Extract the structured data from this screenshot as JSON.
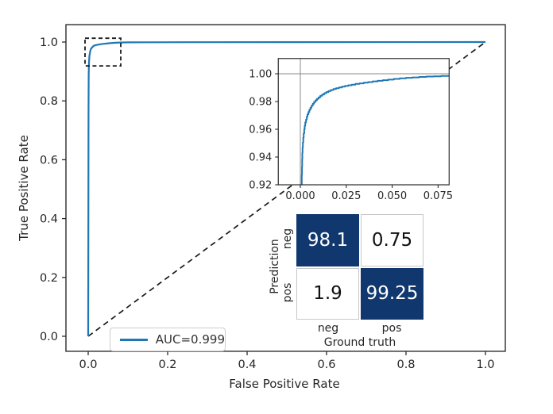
{
  "colors": {
    "curve_blue": "#1f77b4",
    "matrix_dark_blue": "#11386e",
    "dash_black": "#1a1a1a",
    "axes_text": "#262626",
    "spine": "#2b2b2b",
    "reference_gray": "#8a8a8a",
    "legend_border": "#cccccc"
  },
  "chart_data": [
    {
      "type": "line",
      "title": "",
      "xlabel": "False Positive Rate",
      "ylabel": "True Positive Rate",
      "xlim": [
        -0.056,
        1.05
      ],
      "ylim": [
        -0.051,
        1.059
      ],
      "x_ticks": [
        0.0,
        0.2,
        0.4,
        0.6,
        0.8,
        1.0
      ],
      "x_tick_labels": [
        "0.0",
        "0.2",
        "0.4",
        "0.6",
        "0.8",
        "1.0"
      ],
      "y_ticks": [
        0.0,
        0.2,
        0.4,
        0.6,
        0.8,
        1.0
      ],
      "y_tick_labels": [
        "0.0",
        "0.2",
        "0.4",
        "0.6",
        "0.8",
        "1.0"
      ],
      "grid": false,
      "legend": {
        "position": "lower-left",
        "entries": [
          "AUC=0.999"
        ]
      },
      "zoom_indicator_box": {
        "x": [
          -0.008,
          0.082
        ],
        "y": [
          0.919,
          1.013
        ]
      },
      "series": [
        {
          "name": "ROC curve",
          "style": "solid",
          "color": "#1f77b4",
          "points": [
            [
              0.0,
              0.0
            ],
            [
              0.0008,
              0.75
            ],
            [
              0.0012,
              0.88
            ],
            [
              0.0018,
              0.925
            ],
            [
              0.003,
              0.952
            ],
            [
              0.005,
              0.968
            ],
            [
              0.007,
              0.977
            ],
            [
              0.01,
              0.982
            ],
            [
              0.014,
              0.9873
            ],
            [
              0.019,
              0.9896
            ],
            [
              0.025,
              0.9912
            ],
            [
              0.032,
              0.9927
            ],
            [
              0.04,
              0.9941
            ],
            [
              0.051,
              0.9958
            ],
            [
              0.065,
              0.9974
            ],
            [
              0.08,
              0.9984
            ],
            [
              0.1,
              0.9988
            ],
            [
              0.15,
              0.9992
            ],
            [
              0.25,
              0.9995
            ],
            [
              0.5,
              0.9998
            ],
            [
              1.0,
              1.0
            ]
          ]
        },
        {
          "name": "chance diagonal",
          "style": "dashed",
          "color": "#1a1a1a",
          "points": [
            [
              0.0,
              0.0
            ],
            [
              1.0,
              1.0
            ]
          ]
        }
      ]
    },
    {
      "type": "line",
      "title": "inset zoom of ROC near origin",
      "xlim": [
        -0.012,
        0.081
      ],
      "ylim": [
        0.92,
        1.011
      ],
      "x_ticks": [
        0.0,
        0.025,
        0.05,
        0.075
      ],
      "x_tick_labels": [
        "0.000",
        "0.025",
        "0.050",
        "0.075"
      ],
      "y_ticks": [
        0.92,
        0.94,
        0.96,
        0.98,
        1.0
      ],
      "y_tick_labels": [
        "0.92",
        "0.94",
        "0.96",
        "0.98",
        "1.00"
      ],
      "grid": false,
      "reference_lines": {
        "vline_x": 0.0,
        "hline_y": 1.0
      },
      "series": [
        {
          "name": "ROC curve (zoomed)",
          "style": "step",
          "color": "#1f77b4",
          "points": [
            [
              0.0008,
              0.92
            ],
            [
              0.0009,
              0.927
            ],
            [
              0.001,
              0.933
            ],
            [
              0.0011,
              0.9385
            ],
            [
              0.0012,
              0.943
            ],
            [
              0.0014,
              0.947
            ],
            [
              0.0016,
              0.9505
            ],
            [
              0.0018,
              0.954
            ],
            [
              0.0021,
              0.957
            ],
            [
              0.0024,
              0.96
            ],
            [
              0.0027,
              0.9625
            ],
            [
              0.0031,
              0.965
            ],
            [
              0.0035,
              0.967
            ],
            [
              0.0039,
              0.969
            ],
            [
              0.0044,
              0.9708
            ],
            [
              0.0049,
              0.9724
            ],
            [
              0.0055,
              0.974
            ],
            [
              0.0061,
              0.9755
            ],
            [
              0.0068,
              0.977
            ],
            [
              0.0075,
              0.9784
            ],
            [
              0.0083,
              0.9797
            ],
            [
              0.0091,
              0.9809
            ],
            [
              0.01,
              0.982
            ],
            [
              0.0109,
              0.9831
            ],
            [
              0.0119,
              0.9841
            ],
            [
              0.013,
              0.9851
            ],
            [
              0.0141,
              0.986
            ],
            [
              0.0153,
              0.9868
            ],
            [
              0.0166,
              0.9876
            ],
            [
              0.018,
              0.9883
            ],
            [
              0.0194,
              0.989
            ],
            [
              0.021,
              0.9896
            ],
            [
              0.0226,
              0.9902
            ],
            [
              0.0243,
              0.9907
            ],
            [
              0.0261,
              0.9912
            ],
            [
              0.028,
              0.9917
            ],
            [
              0.03,
              0.9922
            ],
            [
              0.0322,
              0.9927
            ],
            [
              0.0345,
              0.9931
            ],
            [
              0.0369,
              0.9936
            ],
            [
              0.0394,
              0.994
            ],
            [
              0.0421,
              0.9945
            ],
            [
              0.0449,
              0.9949
            ],
            [
              0.0478,
              0.9954
            ],
            [
              0.0509,
              0.9958
            ],
            [
              0.0541,
              0.9963
            ],
            [
              0.0575,
              0.9967
            ],
            [
              0.061,
              0.9971
            ],
            [
              0.0647,
              0.9974
            ],
            [
              0.0685,
              0.9977
            ],
            [
              0.0725,
              0.998
            ],
            [
              0.0767,
              0.9982
            ],
            [
              0.0809,
              0.9984
            ]
          ]
        }
      ]
    },
    {
      "type": "heatmap",
      "title": "confusion matrix",
      "xlabel": "Ground truth",
      "ylabel": "Prediction",
      "x_categories": [
        "neg",
        "pos"
      ],
      "y_categories": [
        "neg",
        "pos"
      ],
      "values": [
        [
          98.1,
          0.75
        ],
        [
          1.9,
          99.25
        ]
      ],
      "value_labels": [
        [
          "98.1",
          "0.75"
        ],
        [
          "1.9",
          "99.25"
        ]
      ],
      "cell_colors": [
        [
          "#11386e",
          "#ffffff"
        ],
        [
          "#ffffff",
          "#11386e"
        ]
      ]
    }
  ]
}
